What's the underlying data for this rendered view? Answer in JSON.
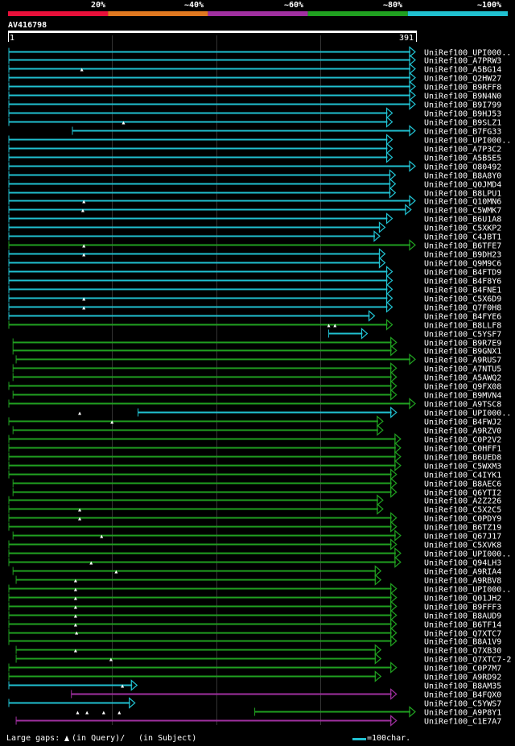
{
  "colors": {
    "background": "#000000",
    "seg20": "#e8103a",
    "seg40": "#e07820",
    "seg60": "#a030a0",
    "seg80": "#20a020",
    "seg100": "#20c0d0",
    "grid": "#333333",
    "axis": "#ffffff",
    "marker": "#ffffff"
  },
  "identity_legend": [
    {
      "label": "20%",
      "color_key": "seg20"
    },
    {
      "label": "~40%",
      "color_key": "seg40"
    },
    {
      "label": "~60%",
      "color_key": "seg60"
    },
    {
      "label": "~80%",
      "color_key": "seg80"
    },
    {
      "label": "~100%",
      "color_key": "seg100"
    }
  ],
  "footer": {
    "large_gaps_label": "Large gaps:",
    "in_query_label": "(in Query)/",
    "in_subject_label": "(in Subject)",
    "scale_label": "=100char."
  },
  "chart_data": {
    "type": "alignment",
    "title": "AV416798",
    "query_start_label": "1",
    "query_end_label": "391",
    "query_length": 391,
    "gridlines": [
      100,
      200,
      300
    ],
    "hits": [
      {
        "label": "UniRef100_UPI000..",
        "start": 1,
        "end": 391,
        "color": "seg100",
        "arrow": true,
        "marks": []
      },
      {
        "label": "UniRef100_A7PRW3",
        "start": 1,
        "end": 391,
        "color": "seg100",
        "arrow": true,
        "marks": []
      },
      {
        "label": "UniRef100_A5BG14",
        "start": 1,
        "end": 391,
        "color": "seg100",
        "arrow": true,
        "marks": []
      },
      {
        "label": "UniRef100_Q2HW27",
        "start": 1,
        "end": 391,
        "color": "seg100",
        "arrow": true,
        "marks": [
          71
        ]
      },
      {
        "label": "UniRef100_B9RFF8",
        "start": 1,
        "end": 391,
        "color": "seg100",
        "arrow": true,
        "marks": []
      },
      {
        "label": "UniRef100_B9N4N0",
        "start": 1,
        "end": 391,
        "color": "seg100",
        "arrow": true,
        "marks": []
      },
      {
        "label": "UniRef100_B9I799",
        "start": 1,
        "end": 391,
        "color": "seg100",
        "arrow": true,
        "marks": []
      },
      {
        "label": "UniRef100_B9HJ53",
        "start": 1,
        "end": 369,
        "color": "seg100",
        "arrow": true,
        "marks": []
      },
      {
        "label": "UniRef100_B9SLZ1",
        "start": 1,
        "end": 369,
        "color": "seg100",
        "arrow": true,
        "marks": []
      },
      {
        "label": "UniRef100_B7FG33",
        "start": 62,
        "end": 391,
        "color": "seg100",
        "arrow": true,
        "marks": [
          111
        ]
      },
      {
        "label": "UniRef100_UPI000..",
        "start": 1,
        "end": 369,
        "color": "seg100",
        "arrow": true,
        "marks": []
      },
      {
        "label": "UniRef100_A7P3C2",
        "start": 1,
        "end": 369,
        "color": "seg100",
        "arrow": true,
        "marks": []
      },
      {
        "label": "UniRef100_A5B5E5",
        "start": 1,
        "end": 369,
        "color": "seg100",
        "arrow": true,
        "marks": []
      },
      {
        "label": "UniRef100_O80492",
        "start": 1,
        "end": 391,
        "color": "seg100",
        "arrow": true,
        "marks": []
      },
      {
        "label": "UniRef100_B8A8Y0",
        "start": 1,
        "end": 372,
        "color": "seg100",
        "arrow": true,
        "marks": []
      },
      {
        "label": "UniRef100_Q0JMD4",
        "start": 1,
        "end": 372,
        "color": "seg100",
        "arrow": true,
        "marks": []
      },
      {
        "label": "UniRef100_B8LPU1",
        "start": 1,
        "end": 372,
        "color": "seg100",
        "arrow": true,
        "marks": []
      },
      {
        "label": "UniRef100_Q10MN6",
        "start": 1,
        "end": 391,
        "color": "seg100",
        "arrow": true,
        "marks": []
      },
      {
        "label": "UniRef100_C5WMK7",
        "start": 1,
        "end": 387,
        "color": "seg100",
        "arrow": true,
        "marks": [
          73
        ]
      },
      {
        "label": "UniRef100_B6U1A8",
        "start": 1,
        "end": 369,
        "color": "seg100",
        "arrow": true,
        "marks": [
          72
        ]
      },
      {
        "label": "UniRef100_C5XKP2",
        "start": 1,
        "end": 362,
        "color": "seg100",
        "arrow": true,
        "marks": []
      },
      {
        "label": "UniRef100_C4JBT1",
        "start": 1,
        "end": 357,
        "color": "seg100",
        "arrow": true,
        "marks": []
      },
      {
        "label": "UniRef100_B6TFE7",
        "start": 1,
        "end": 391,
        "color": "seg80",
        "arrow": true,
        "marks": []
      },
      {
        "label": "UniRef100_B9DH23",
        "start": 1,
        "end": 362,
        "color": "seg100",
        "arrow": true,
        "marks": [
          73
        ]
      },
      {
        "label": "UniRef100_Q9M9C6",
        "start": 1,
        "end": 362,
        "color": "seg100",
        "arrow": true,
        "marks": [
          73
        ]
      },
      {
        "label": "UniRef100_B4FTD9",
        "start": 1,
        "end": 369,
        "color": "seg100",
        "arrow": true,
        "marks": []
      },
      {
        "label": "UniRef100_B4F8Y6",
        "start": 1,
        "end": 369,
        "color": "seg100",
        "arrow": true,
        "marks": []
      },
      {
        "label": "UniRef100_B4FNE1",
        "start": 1,
        "end": 369,
        "color": "seg100",
        "arrow": true,
        "marks": []
      },
      {
        "label": "UniRef100_C5X6D9",
        "start": 1,
        "end": 369,
        "color": "seg100",
        "arrow": true,
        "marks": []
      },
      {
        "label": "UniRef100_Q7F0H8",
        "start": 1,
        "end": 369,
        "color": "seg100",
        "arrow": true,
        "marks": [
          73
        ]
      },
      {
        "label": "UniRef100_B4FYE6",
        "start": 1,
        "end": 352,
        "color": "seg100",
        "arrow": true,
        "marks": [
          73
        ]
      },
      {
        "label": "UniRef100_B8LLF8",
        "start": 1,
        "end": 369,
        "color": "seg80",
        "arrow": true,
        "marks": []
      },
      {
        "label": "UniRef100_C5YSF7",
        "start": 308,
        "end": 345,
        "color": "seg100",
        "arrow": true,
        "marks": [
          308,
          314
        ]
      },
      {
        "label": "UniRef100_B9R7E9",
        "start": 5,
        "end": 373,
        "color": "seg80",
        "arrow": true,
        "marks": []
      },
      {
        "label": "UniRef100_B9GNX1",
        "start": 5,
        "end": 373,
        "color": "seg80",
        "arrow": true,
        "marks": []
      },
      {
        "label": "UniRef100_A9RUS7",
        "start": 8,
        "end": 391,
        "color": "seg80",
        "arrow": true,
        "marks": []
      },
      {
        "label": "UniRef100_A7NTU5",
        "start": 5,
        "end": 373,
        "color": "seg80",
        "arrow": true,
        "marks": []
      },
      {
        "label": "UniRef100_A5AWQ2",
        "start": 5,
        "end": 373,
        "color": "seg80",
        "arrow": true,
        "marks": []
      },
      {
        "label": "UniRef100_Q9FX08",
        "start": 1,
        "end": 373,
        "color": "seg80",
        "arrow": true,
        "marks": []
      },
      {
        "label": "UniRef100_B9MVN4",
        "start": 5,
        "end": 373,
        "color": "seg80",
        "arrow": true,
        "marks": []
      },
      {
        "label": "UniRef100_A9TSC8",
        "start": 1,
        "end": 391,
        "color": "seg80",
        "arrow": true,
        "marks": []
      },
      {
        "label": "UniRef100_UPI000..",
        "start": 125,
        "end": 373,
        "color": "seg100",
        "arrow": true,
        "marks": []
      },
      {
        "label": "UniRef100_B4FWJ2",
        "start": 1,
        "end": 360,
        "color": "seg80",
        "arrow": true,
        "marks": [
          69
        ]
      },
      {
        "label": "UniRef100_A9RZV0",
        "start": 5,
        "end": 360,
        "color": "seg80",
        "arrow": true,
        "marks": [
          100
        ]
      },
      {
        "label": "UniRef100_C0P2V2",
        "start": 1,
        "end": 377,
        "color": "seg80",
        "arrow": true,
        "marks": []
      },
      {
        "label": "UniRef100_C0HFF1",
        "start": 1,
        "end": 377,
        "color": "seg80",
        "arrow": true,
        "marks": []
      },
      {
        "label": "UniRef100_B6UED8",
        "start": 1,
        "end": 377,
        "color": "seg80",
        "arrow": true,
        "marks": []
      },
      {
        "label": "UniRef100_C5WXM3",
        "start": 1,
        "end": 377,
        "color": "seg80",
        "arrow": true,
        "marks": []
      },
      {
        "label": "UniRef100_C4IYK1",
        "start": 1,
        "end": 373,
        "color": "seg80",
        "arrow": true,
        "marks": []
      },
      {
        "label": "UniRef100_B8AEC6",
        "start": 5,
        "end": 373,
        "color": "seg80",
        "arrow": true,
        "marks": []
      },
      {
        "label": "UniRef100_Q6YTI2",
        "start": 5,
        "end": 373,
        "color": "seg80",
        "arrow": true,
        "marks": []
      },
      {
        "label": "UniRef100_A2Z226",
        "start": 1,
        "end": 360,
        "color": "seg80",
        "arrow": true,
        "marks": []
      },
      {
        "label": "UniRef100_C5X2C5",
        "start": 1,
        "end": 360,
        "color": "seg80",
        "arrow": true,
        "marks": []
      },
      {
        "label": "UniRef100_C0PDY9",
        "start": 1,
        "end": 373,
        "color": "seg80",
        "arrow": true,
        "marks": [
          69
        ]
      },
      {
        "label": "UniRef100_B6TZ19",
        "start": 1,
        "end": 373,
        "color": "seg80",
        "arrow": true,
        "marks": [
          69
        ]
      },
      {
        "label": "UniRef100_Q67J17",
        "start": 5,
        "end": 377,
        "color": "seg80",
        "arrow": true,
        "marks": []
      },
      {
        "label": "UniRef100_C5XVK8",
        "start": 1,
        "end": 373,
        "color": "seg80",
        "arrow": true,
        "marks": [
          90
        ]
      },
      {
        "label": "UniRef100_UPI000..",
        "start": 1,
        "end": 377,
        "color": "seg80",
        "arrow": true,
        "marks": []
      },
      {
        "label": "UniRef100_Q94LH3",
        "start": 1,
        "end": 377,
        "color": "seg80",
        "arrow": true,
        "marks": []
      },
      {
        "label": "UniRef100_A9RIA4",
        "start": 5,
        "end": 358,
        "color": "seg80",
        "arrow": true,
        "marks": [
          80
        ]
      },
      {
        "label": "UniRef100_A9RBV8",
        "start": 8,
        "end": 358,
        "color": "seg80",
        "arrow": true,
        "marks": [
          104
        ]
      },
      {
        "label": "UniRef100_UPI000..",
        "start": 1,
        "end": 373,
        "color": "seg80",
        "arrow": true,
        "marks": [
          65
        ]
      },
      {
        "label": "UniRef100_Q01JH2",
        "start": 1,
        "end": 373,
        "color": "seg80",
        "arrow": true,
        "marks": [
          65
        ]
      },
      {
        "label": "UniRef100_B9FFF3",
        "start": 1,
        "end": 373,
        "color": "seg80",
        "arrow": true,
        "marks": [
          65
        ]
      },
      {
        "label": "UniRef100_B8AUD9",
        "start": 1,
        "end": 373,
        "color": "seg80",
        "arrow": true,
        "marks": [
          65
        ]
      },
      {
        "label": "UniRef100_B6TF14",
        "start": 1,
        "end": 373,
        "color": "seg80",
        "arrow": true,
        "marks": [
          65
        ]
      },
      {
        "label": "UniRef100_Q7XTC7",
        "start": 1,
        "end": 373,
        "color": "seg80",
        "arrow": true,
        "marks": [
          65
        ]
      },
      {
        "label": "UniRef100_B8A1V9",
        "start": 1,
        "end": 373,
        "color": "seg80",
        "arrow": true,
        "marks": [
          66
        ]
      },
      {
        "label": "UniRef100_Q7XB30",
        "start": 8,
        "end": 358,
        "color": "seg80",
        "arrow": true,
        "marks": []
      },
      {
        "label": "UniRef100_Q7XTC7-2",
        "start": 8,
        "end": 358,
        "color": "seg80",
        "arrow": true,
        "marks": [
          65
        ]
      },
      {
        "label": "UniRef100_C0P7M7",
        "start": 1,
        "end": 373,
        "color": "seg80",
        "arrow": true,
        "marks": [
          99
        ]
      },
      {
        "label": "UniRef100_A9RD92",
        "start": 1,
        "end": 358,
        "color": "seg80",
        "arrow": true,
        "marks": []
      },
      {
        "label": "UniRef100_B8AM35",
        "start": 1,
        "end": 124,
        "color": "seg100",
        "arrow": true,
        "marks": []
      },
      {
        "label": "UniRef100_B4FQX0",
        "start": 61,
        "end": 373,
        "color": "seg60",
        "arrow": true,
        "marks": [
          110
        ]
      },
      {
        "label": "UniRef100_C5YWS7",
        "start": 1,
        "end": 122,
        "color": "seg100",
        "arrow": true,
        "marks": []
      },
      {
        "label": "UniRef100_A9P8Y1",
        "start": 237,
        "end": 391,
        "color": "seg80",
        "arrow": true,
        "marks": []
      },
      {
        "label": "UniRef100_C1E7A7",
        "start": 8,
        "end": 373,
        "color": "seg60",
        "arrow": true,
        "marks": [
          67,
          76,
          92,
          107
        ]
      }
    ]
  }
}
